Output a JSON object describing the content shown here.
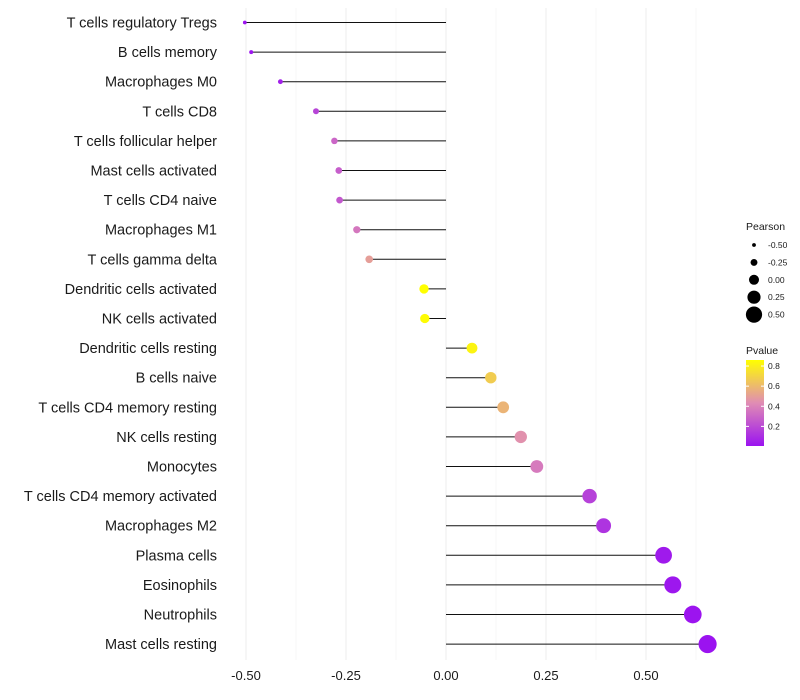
{
  "chart_data": {
    "type": "lollipop",
    "title": "",
    "xlabel": "",
    "ylabel": "",
    "xlim": [
      -0.5,
      0.65
    ],
    "x_ticks": [
      -0.5,
      -0.25,
      0.0,
      0.25,
      0.5
    ],
    "x_tick_labels": [
      "-0.50",
      "-0.25",
      "0.00",
      "0.25",
      "0.50"
    ],
    "grid": true,
    "categories": [
      "T cells regulatory  Tregs",
      "B cells memory",
      "Macrophages M0",
      "T cells CD8",
      "T cells follicular helper",
      "Mast cells activated",
      "T cells CD4 naive",
      "Macrophages M1",
      "T cells gamma delta",
      "Dendritic cells activated",
      "NK cells activated",
      "Dendritic cells resting",
      "B cells naive",
      "T cells CD4 memory resting",
      "NK cells resting",
      "Monocytes",
      "T cells CD4 memory activated",
      "Macrophages M2",
      "Plasma cells",
      "Eosinophils",
      "Neutrophils",
      "Mast cells resting"
    ],
    "pearson": [
      -0.503,
      -0.487,
      -0.414,
      -0.325,
      -0.279,
      -0.268,
      -0.266,
      -0.223,
      -0.192,
      -0.055,
      -0.053,
      0.065,
      0.112,
      0.143,
      0.187,
      0.227,
      0.359,
      0.394,
      0.544,
      0.567,
      0.617,
      0.654
    ],
    "pvalue": [
      0.01,
      0.02,
      0.05,
      0.18,
      0.3,
      0.27,
      0.25,
      0.36,
      0.5,
      0.86,
      0.85,
      0.82,
      0.67,
      0.58,
      0.45,
      0.37,
      0.17,
      0.12,
      0.03,
      0.02,
      0.01,
      0.005
    ],
    "legend_size": {
      "title": "Pearson",
      "labels": [
        "-0.50",
        "-0.25",
        "0.00",
        "0.25",
        "0.50"
      ],
      "values": [
        -0.5,
        -0.25,
        0.0,
        0.25,
        0.5
      ]
    },
    "legend_color": {
      "title": "Pvalue",
      "labels": [
        "0.8",
        "0.6",
        "0.4",
        "0.2"
      ],
      "values": [
        0.8,
        0.6,
        0.4,
        0.2
      ],
      "range": [
        0.005,
        0.86
      ],
      "colors": [
        "#9b13f0",
        "#e08cb4",
        "#ffff00"
      ]
    },
    "legend_placement": "right"
  }
}
